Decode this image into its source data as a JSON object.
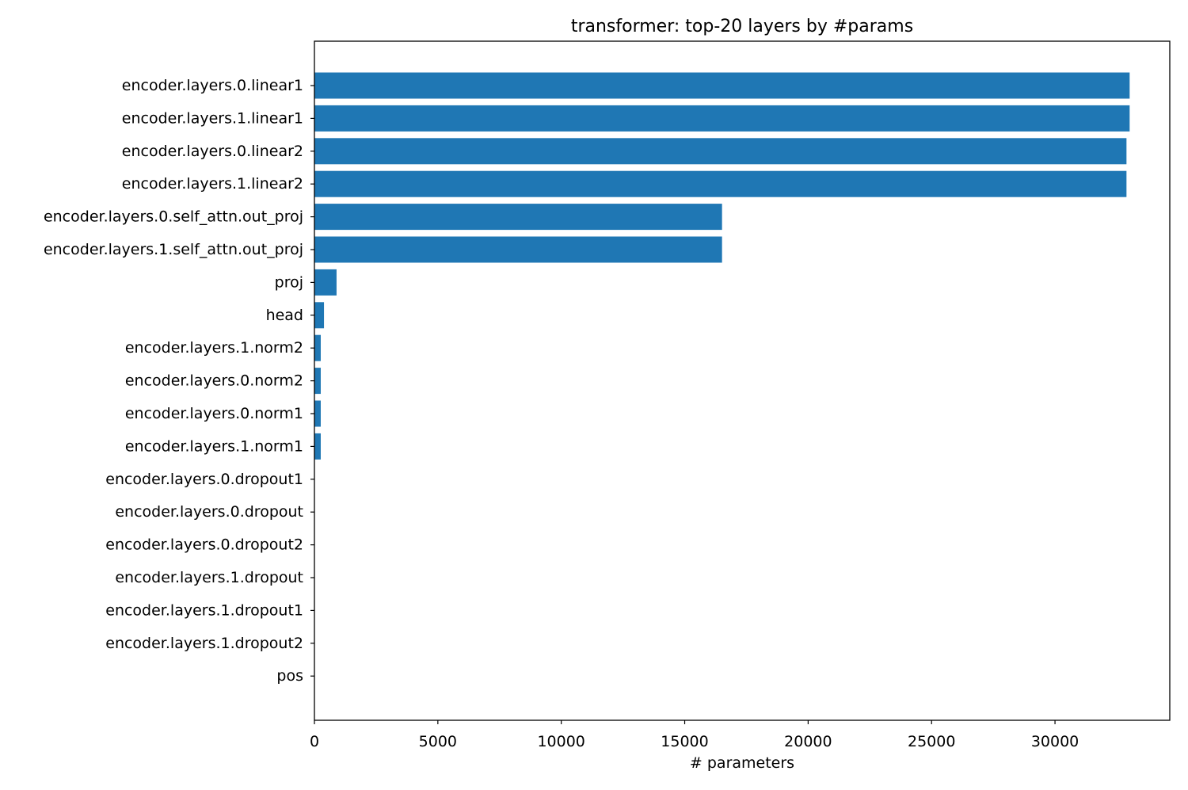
{
  "chart_data": {
    "type": "bar",
    "orientation": "horizontal",
    "title": "transformer: top-20 layers by #params",
    "xlabel": "# parameters",
    "ylabel": "",
    "xlim": [
      0,
      34650
    ],
    "xticks": [
      0,
      5000,
      10000,
      15000,
      20000,
      25000,
      30000
    ],
    "grid": false,
    "bar_color": "#1f77b4",
    "categories": [
      "encoder.layers.0.linear1",
      "encoder.layers.1.linear1",
      "encoder.layers.0.linear2",
      "encoder.layers.1.linear2",
      "encoder.layers.0.self_attn.out_proj",
      "encoder.layers.1.self_attn.out_proj",
      "proj",
      "head",
      "encoder.layers.1.norm2",
      "encoder.layers.0.norm2",
      "encoder.layers.0.norm1",
      "encoder.layers.1.norm1",
      "encoder.layers.0.dropout1",
      "encoder.layers.0.dropout",
      "encoder.layers.0.dropout2",
      "encoder.layers.1.dropout",
      "encoder.layers.1.dropout1",
      "encoder.layers.1.dropout2",
      "pos"
    ],
    "values": [
      33024,
      33024,
      32896,
      32896,
      16512,
      16512,
      896,
      387,
      256,
      256,
      256,
      256,
      0,
      0,
      0,
      0,
      0,
      0,
      0
    ]
  }
}
